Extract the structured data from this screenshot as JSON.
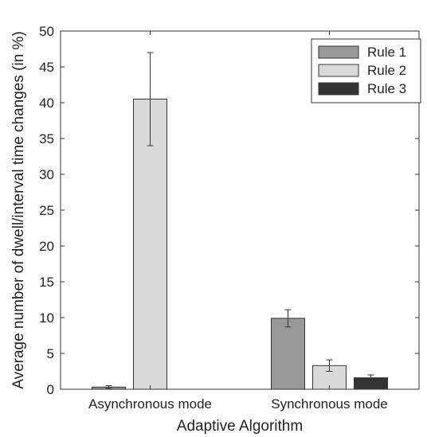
{
  "chart_data": {
    "type": "bar",
    "categories": [
      "Asynchronous mode",
      "Synchronous mode"
    ],
    "series": [
      {
        "name": "Rule 1",
        "values": [
          0.3,
          9.9
        ],
        "errors": [
          0.2,
          1.2
        ],
        "color": "#999999"
      },
      {
        "name": "Rule 2",
        "values": [
          40.5,
          3.3
        ],
        "errors": [
          6.5,
          0.8
        ],
        "color": "#d9d9d9"
      },
      {
        "name": "Rule 3",
        "values": [
          0,
          1.6
        ],
        "errors": [
          0,
          0.4
        ],
        "color": "#333333"
      }
    ],
    "xlabel": "Adaptive Algorithm",
    "ylabel": "Average number of dwell/interval time changes (in %)",
    "ylim": [
      0,
      50
    ],
    "yticks": [
      0,
      5,
      10,
      15,
      20,
      25,
      30,
      35,
      40,
      45,
      50
    ],
    "grid": false,
    "legend_position": "top-right"
  }
}
